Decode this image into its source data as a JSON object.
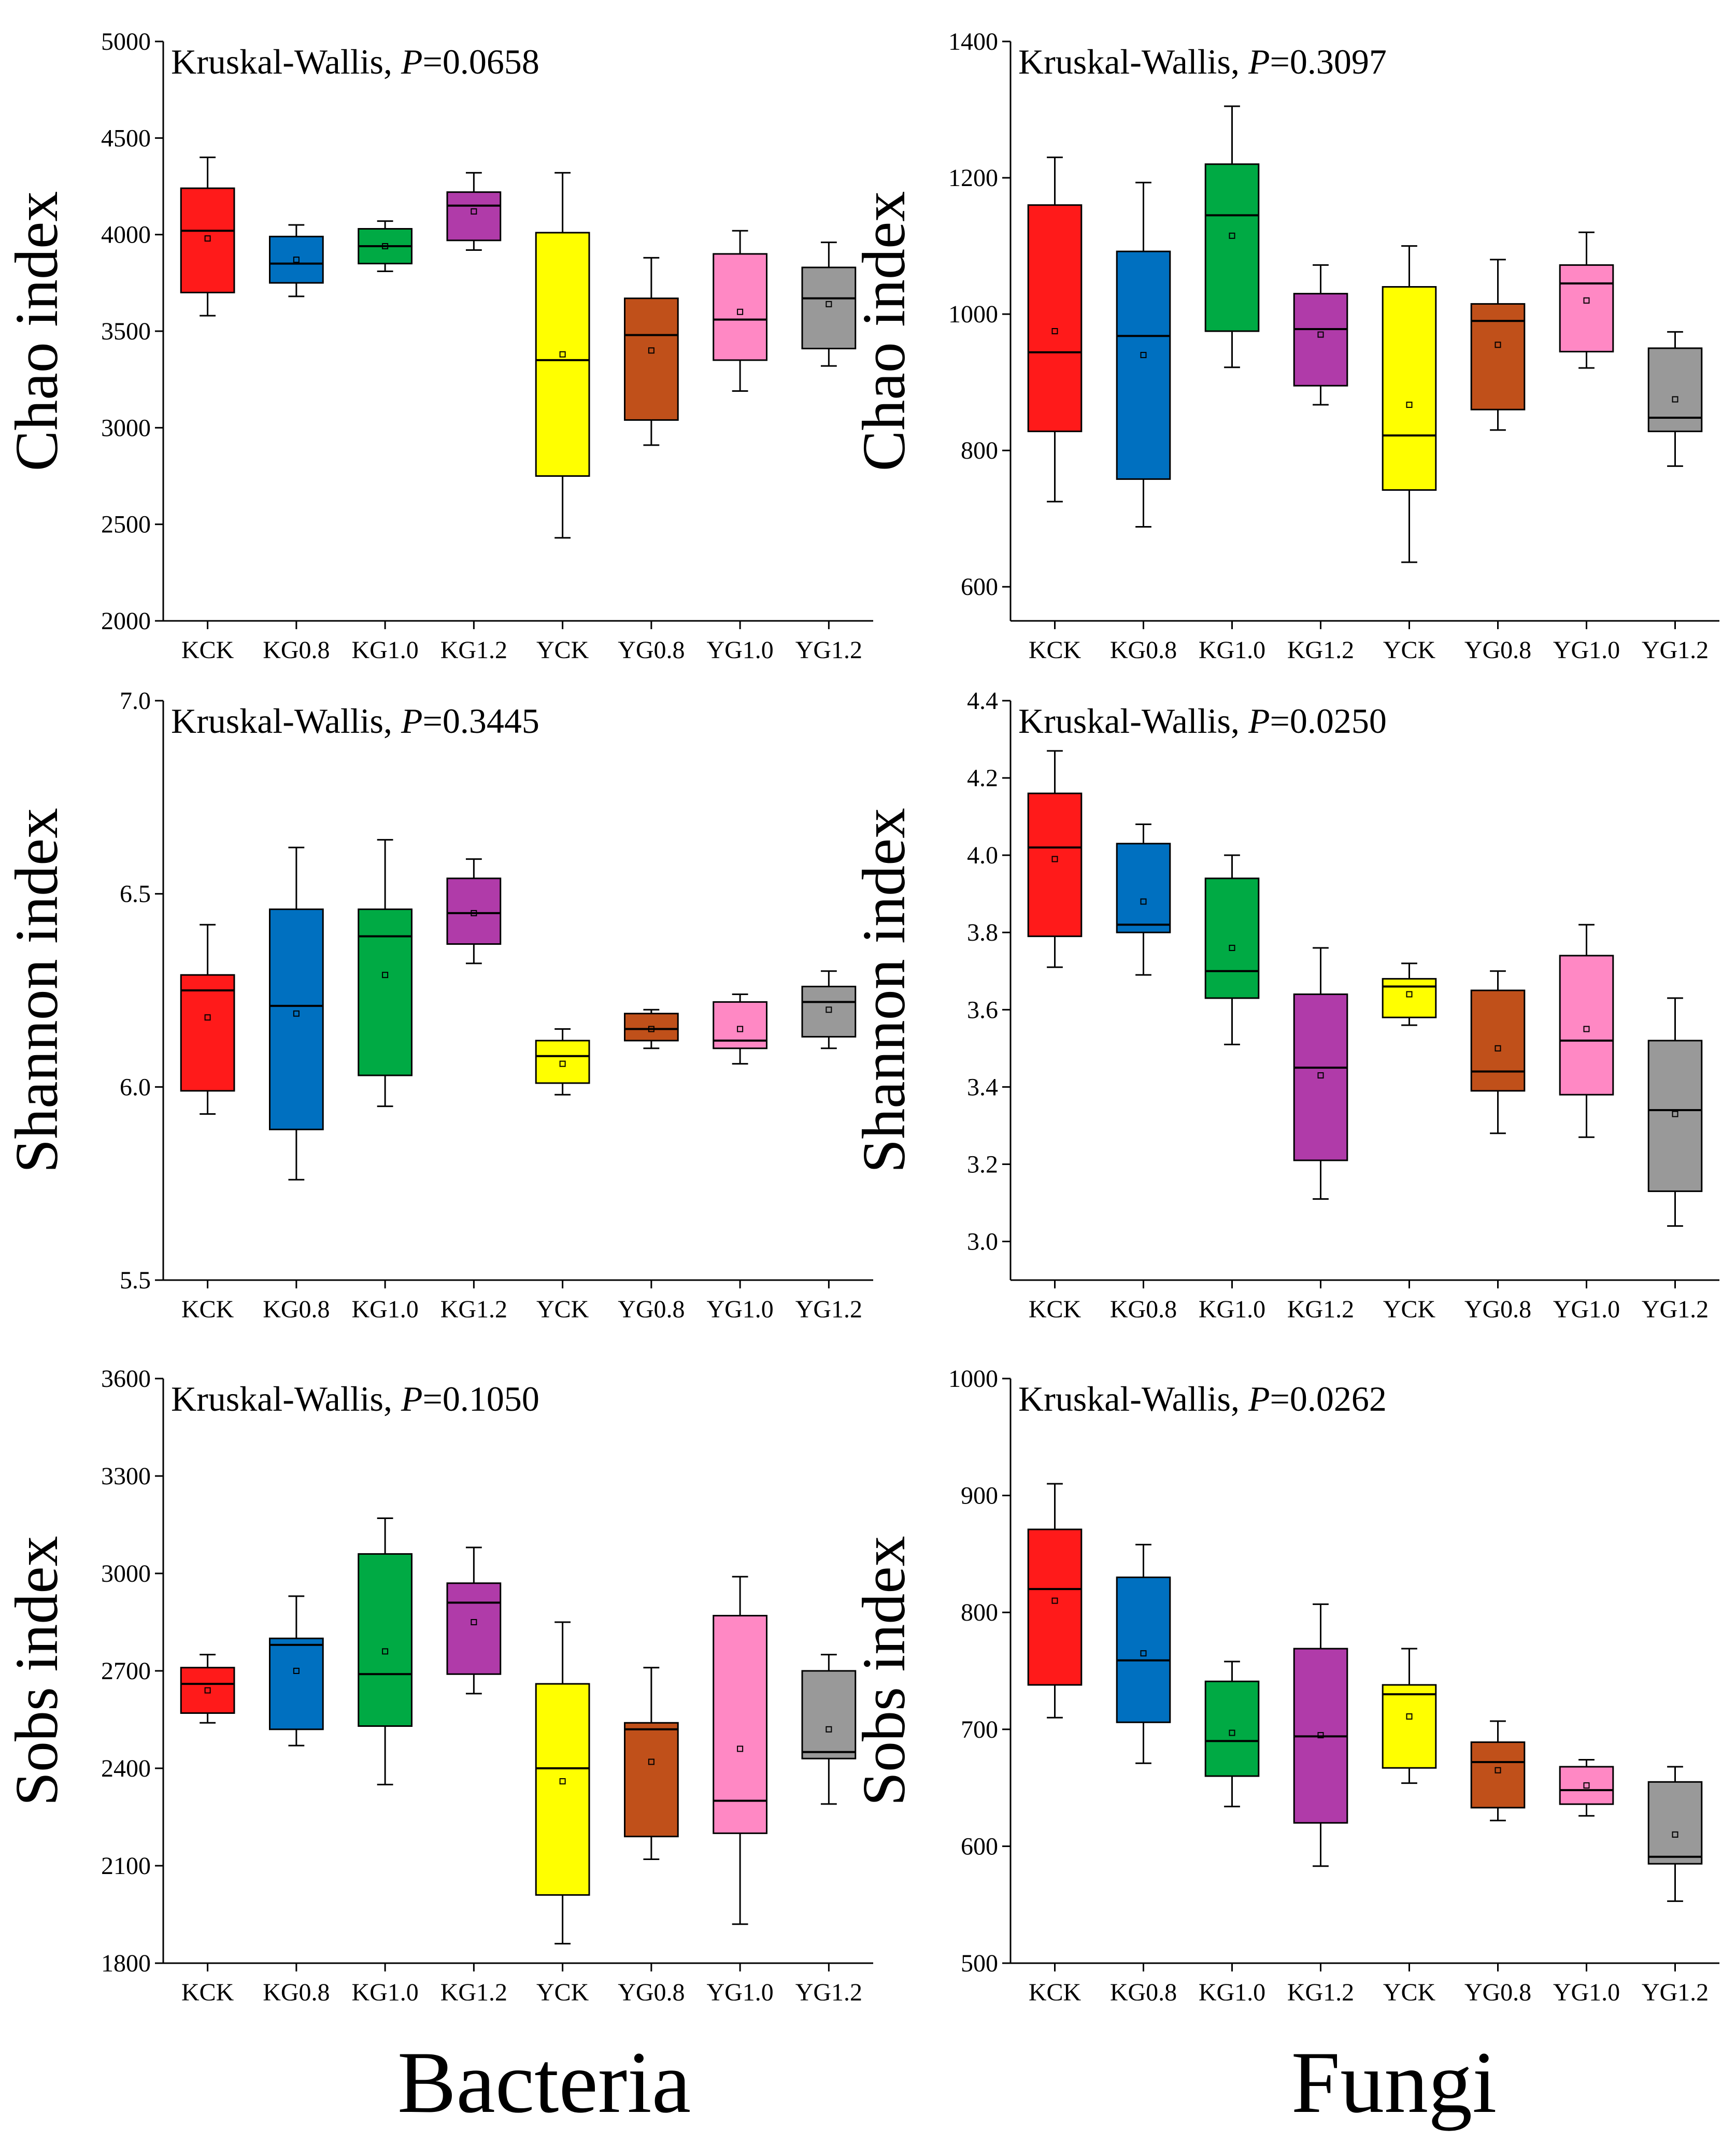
{
  "footer": {
    "left": "Bacteria",
    "right": "Fungi"
  },
  "colors": [
    "#ff1a1a",
    "#0070c0",
    "#00aa44",
    "#b03ba9",
    "#ffff00",
    "#c0501a",
    "#ff88c4",
    "#999999"
  ],
  "chart_data": [
    {
      "type": "box",
      "group": "Bacteria",
      "title_prefix": "Kruskal-Wallis, ",
      "p_symbol": "P",
      "p_value": "=0.0658",
      "ylabel": "Chao index",
      "ylim": [
        2000,
        5000
      ],
      "yticks": [
        2000,
        2500,
        3000,
        3500,
        4000,
        4500,
        5000
      ],
      "ytick_labels": [
        "2000",
        "2500",
        "3000",
        "3500",
        "4000",
        "4500",
        "5000"
      ],
      "categories": [
        "KCK",
        "KG0.8",
        "KG1.0",
        "KG1.2",
        "YCK",
        "YG0.8",
        "YG1.0",
        "YG1.2"
      ],
      "boxes": [
        {
          "whisker_low": 3580,
          "q1": 3700,
          "median": 4020,
          "q3": 4240,
          "whisker_high": 4400,
          "mean": 3980
        },
        {
          "whisker_low": 3680,
          "q1": 3750,
          "median": 3850,
          "q3": 3990,
          "whisker_high": 4050,
          "mean": 3870
        },
        {
          "whisker_low": 3810,
          "q1": 3850,
          "median": 3940,
          "q3": 4030,
          "whisker_high": 4070,
          "mean": 3940
        },
        {
          "whisker_low": 3920,
          "q1": 3970,
          "median": 4150,
          "q3": 4220,
          "whisker_high": 4320,
          "mean": 4120
        },
        {
          "whisker_low": 2430,
          "q1": 2750,
          "median": 3350,
          "q3": 4010,
          "whisker_high": 4320,
          "mean": 3380
        },
        {
          "whisker_low": 2910,
          "q1": 3040,
          "median": 3480,
          "q3": 3670,
          "whisker_high": 3880,
          "mean": 3400
        },
        {
          "whisker_low": 3190,
          "q1": 3350,
          "median": 3560,
          "q3": 3900,
          "whisker_high": 4020,
          "mean": 3600
        },
        {
          "whisker_low": 3320,
          "q1": 3410,
          "median": 3670,
          "q3": 3830,
          "whisker_high": 3960,
          "mean": 3640
        }
      ]
    },
    {
      "type": "box",
      "group": "Fungi",
      "title_prefix": "Kruskal-Wallis, ",
      "p_symbol": "P",
      "p_value": "=0.3097",
      "ylabel": "Chao index",
      "ylim": [
        550,
        1400
      ],
      "yticks": [
        600,
        800,
        1000,
        1200,
        1400
      ],
      "ytick_labels": [
        "600",
        "800",
        "1000",
        "1200",
        "1400"
      ],
      "categories": [
        "KCK",
        "KG0.8",
        "KG1.0",
        "KG1.2",
        "YCK",
        "YG0.8",
        "YG1.0",
        "YG1.2"
      ],
      "boxes": [
        {
          "whisker_low": 725,
          "q1": 828,
          "median": 944,
          "q3": 1160,
          "whisker_high": 1230,
          "mean": 975
        },
        {
          "whisker_low": 688,
          "q1": 758,
          "median": 968,
          "q3": 1092,
          "whisker_high": 1193,
          "mean": 940
        },
        {
          "whisker_low": 922,
          "q1": 975,
          "median": 1145,
          "q3": 1220,
          "whisker_high": 1305,
          "mean": 1115
        },
        {
          "whisker_low": 867,
          "q1": 895,
          "median": 978,
          "q3": 1030,
          "whisker_high": 1072,
          "mean": 970
        },
        {
          "whisker_low": 636,
          "q1": 742,
          "median": 822,
          "q3": 1040,
          "whisker_high": 1100,
          "mean": 867
        },
        {
          "whisker_low": 830,
          "q1": 860,
          "median": 990,
          "q3": 1015,
          "whisker_high": 1080,
          "mean": 955
        },
        {
          "whisker_low": 921,
          "q1": 945,
          "median": 1045,
          "q3": 1072,
          "whisker_high": 1120,
          "mean": 1020
        },
        {
          "whisker_low": 777,
          "q1": 828,
          "median": 848,
          "q3": 950,
          "whisker_high": 974,
          "mean": 875
        }
      ]
    },
    {
      "type": "box",
      "group": "Bacteria",
      "title_prefix": "Kruskal-Wallis, ",
      "p_symbol": "P",
      "p_value": "=0.3445",
      "ylabel": "Shannon index",
      "ylim": [
        5.5,
        7.0
      ],
      "yticks": [
        5.5,
        6.0,
        6.5,
        7.0
      ],
      "ytick_labels": [
        "5.5",
        "6.0",
        "6.5",
        "7.0"
      ],
      "categories": [
        "KCK",
        "KG0.8",
        "KG1.0",
        "KG1.2",
        "YCK",
        "YG0.8",
        "YG1.0",
        "YG1.2"
      ],
      "boxes": [
        {
          "whisker_low": 5.93,
          "q1": 5.99,
          "median": 6.25,
          "q3": 6.29,
          "whisker_high": 6.42,
          "mean": 6.18
        },
        {
          "whisker_low": 5.76,
          "q1": 5.89,
          "median": 6.21,
          "q3": 6.46,
          "whisker_high": 6.62,
          "mean": 6.19
        },
        {
          "whisker_low": 5.95,
          "q1": 6.03,
          "median": 6.39,
          "q3": 6.46,
          "whisker_high": 6.64,
          "mean": 6.29
        },
        {
          "whisker_low": 6.32,
          "q1": 6.37,
          "median": 6.45,
          "q3": 6.54,
          "whisker_high": 6.59,
          "mean": 6.45
        },
        {
          "whisker_low": 5.98,
          "q1": 6.01,
          "median": 6.08,
          "q3": 6.12,
          "whisker_high": 6.15,
          "mean": 6.06
        },
        {
          "whisker_low": 6.1,
          "q1": 6.12,
          "median": 6.15,
          "q3": 6.19,
          "whisker_high": 6.2,
          "mean": 6.15
        },
        {
          "whisker_low": 6.06,
          "q1": 6.1,
          "median": 6.12,
          "q3": 6.22,
          "whisker_high": 6.24,
          "mean": 6.15
        },
        {
          "whisker_low": 6.1,
          "q1": 6.13,
          "median": 6.22,
          "q3": 6.26,
          "whisker_high": 6.3,
          "mean": 6.2
        }
      ]
    },
    {
      "type": "box",
      "group": "Fungi",
      "title_prefix": "Kruskal-Wallis, ",
      "p_symbol": "P",
      "p_value": "=0.0250",
      "ylabel": "Shannon index",
      "ylim": [
        2.9,
        4.4
      ],
      "yticks": [
        3.0,
        3.2,
        3.4,
        3.6,
        3.8,
        4.0,
        4.2,
        4.4
      ],
      "ytick_labels": [
        "3.0",
        "3.2",
        "3.4",
        "3.6",
        "3.8",
        "4.0",
        "4.2",
        "4.4"
      ],
      "categories": [
        "KCK",
        "KG0.8",
        "KG1.0",
        "KG1.2",
        "YCK",
        "YG0.8",
        "YG1.0",
        "YG1.2"
      ],
      "boxes": [
        {
          "whisker_low": 3.71,
          "q1": 3.79,
          "median": 4.02,
          "q3": 4.16,
          "whisker_high": 4.27,
          "mean": 3.99
        },
        {
          "whisker_low": 3.69,
          "q1": 3.8,
          "median": 3.82,
          "q3": 4.03,
          "whisker_high": 4.08,
          "mean": 3.88
        },
        {
          "whisker_low": 3.51,
          "q1": 3.63,
          "median": 3.7,
          "q3": 3.94,
          "whisker_high": 4.0,
          "mean": 3.76
        },
        {
          "whisker_low": 3.11,
          "q1": 3.21,
          "median": 3.45,
          "q3": 3.64,
          "whisker_high": 3.76,
          "mean": 3.43
        },
        {
          "whisker_low": 3.56,
          "q1": 3.58,
          "median": 3.66,
          "q3": 3.68,
          "whisker_high": 3.72,
          "mean": 3.64
        },
        {
          "whisker_low": 3.28,
          "q1": 3.39,
          "median": 3.44,
          "q3": 3.65,
          "whisker_high": 3.7,
          "mean": 3.5
        },
        {
          "whisker_low": 3.27,
          "q1": 3.38,
          "median": 3.52,
          "q3": 3.74,
          "whisker_high": 3.82,
          "mean": 3.55
        },
        {
          "whisker_low": 3.04,
          "q1": 3.13,
          "median": 3.34,
          "q3": 3.52,
          "whisker_high": 3.63,
          "mean": 3.33
        }
      ]
    },
    {
      "type": "box",
      "group": "Bacteria",
      "title_prefix": "Kruskal-Wallis, ",
      "p_symbol": "P",
      "p_value": "=0.1050",
      "ylabel": "Sobs index",
      "ylim": [
        1800,
        3600
      ],
      "yticks": [
        1800,
        2100,
        2400,
        2700,
        3000,
        3300,
        3600
      ],
      "ytick_labels": [
        "1800",
        "2100",
        "2400",
        "2700",
        "3000",
        "3300",
        "3600"
      ],
      "categories": [
        "KCK",
        "KG0.8",
        "KG1.0",
        "KG1.2",
        "YCK",
        "YG0.8",
        "YG1.0",
        "YG1.2"
      ],
      "boxes": [
        {
          "whisker_low": 2540,
          "q1": 2570,
          "median": 2660,
          "q3": 2710,
          "whisker_high": 2750,
          "mean": 2640
        },
        {
          "whisker_low": 2470,
          "q1": 2520,
          "median": 2780,
          "q3": 2800,
          "whisker_high": 2930,
          "mean": 2700
        },
        {
          "whisker_low": 2350,
          "q1": 2530,
          "median": 2690,
          "q3": 3060,
          "whisker_high": 3170,
          "mean": 2760
        },
        {
          "whisker_low": 2630,
          "q1": 2690,
          "median": 2910,
          "q3": 2970,
          "whisker_high": 3080,
          "mean": 2850
        },
        {
          "whisker_low": 1860,
          "q1": 2010,
          "median": 2400,
          "q3": 2660,
          "whisker_high": 2850,
          "mean": 2360
        },
        {
          "whisker_low": 2120,
          "q1": 2190,
          "median": 2520,
          "q3": 2540,
          "whisker_high": 2710,
          "mean": 2420
        },
        {
          "whisker_low": 1920,
          "q1": 2200,
          "median": 2300,
          "q3": 2870,
          "whisker_high": 2990,
          "mean": 2460
        },
        {
          "whisker_low": 2290,
          "q1": 2430,
          "median": 2450,
          "q3": 2700,
          "whisker_high": 2750,
          "mean": 2520
        }
      ]
    },
    {
      "type": "box",
      "group": "Fungi",
      "title_prefix": "Kruskal-Wallis, ",
      "p_symbol": "P",
      "p_value": "=0.0262",
      "ylabel": "Sobs index",
      "ylim": [
        500,
        1000
      ],
      "yticks": [
        500,
        600,
        700,
        800,
        900,
        1000
      ],
      "ytick_labels": [
        "500",
        "600",
        "700",
        "800",
        "900",
        "1000"
      ],
      "categories": [
        "KCK",
        "KG0.8",
        "KG1.0",
        "KG1.2",
        "YCK",
        "YG0.8",
        "YG1.0",
        "YG1.2"
      ],
      "boxes": [
        {
          "whisker_low": 710,
          "q1": 738,
          "median": 820,
          "q3": 871,
          "whisker_high": 910,
          "mean": 810
        },
        {
          "whisker_low": 671,
          "q1": 706,
          "median": 759,
          "q3": 830,
          "whisker_high": 858,
          "mean": 765
        },
        {
          "whisker_low": 634,
          "q1": 660,
          "median": 690,
          "q3": 741,
          "whisker_high": 758,
          "mean": 697
        },
        {
          "whisker_low": 583,
          "q1": 620,
          "median": 694,
          "q3": 769,
          "whisker_high": 807,
          "mean": 695
        },
        {
          "whisker_low": 654,
          "q1": 667,
          "median": 730,
          "q3": 738,
          "whisker_high": 769,
          "mean": 711
        },
        {
          "whisker_low": 622,
          "q1": 633,
          "median": 672,
          "q3": 689,
          "whisker_high": 707,
          "mean": 665
        },
        {
          "whisker_low": 626,
          "q1": 636,
          "median": 648,
          "q3": 668,
          "whisker_high": 674,
          "mean": 652
        },
        {
          "whisker_low": 553,
          "q1": 585,
          "median": 591,
          "q3": 655,
          "whisker_high": 668,
          "mean": 610
        }
      ]
    }
  ]
}
